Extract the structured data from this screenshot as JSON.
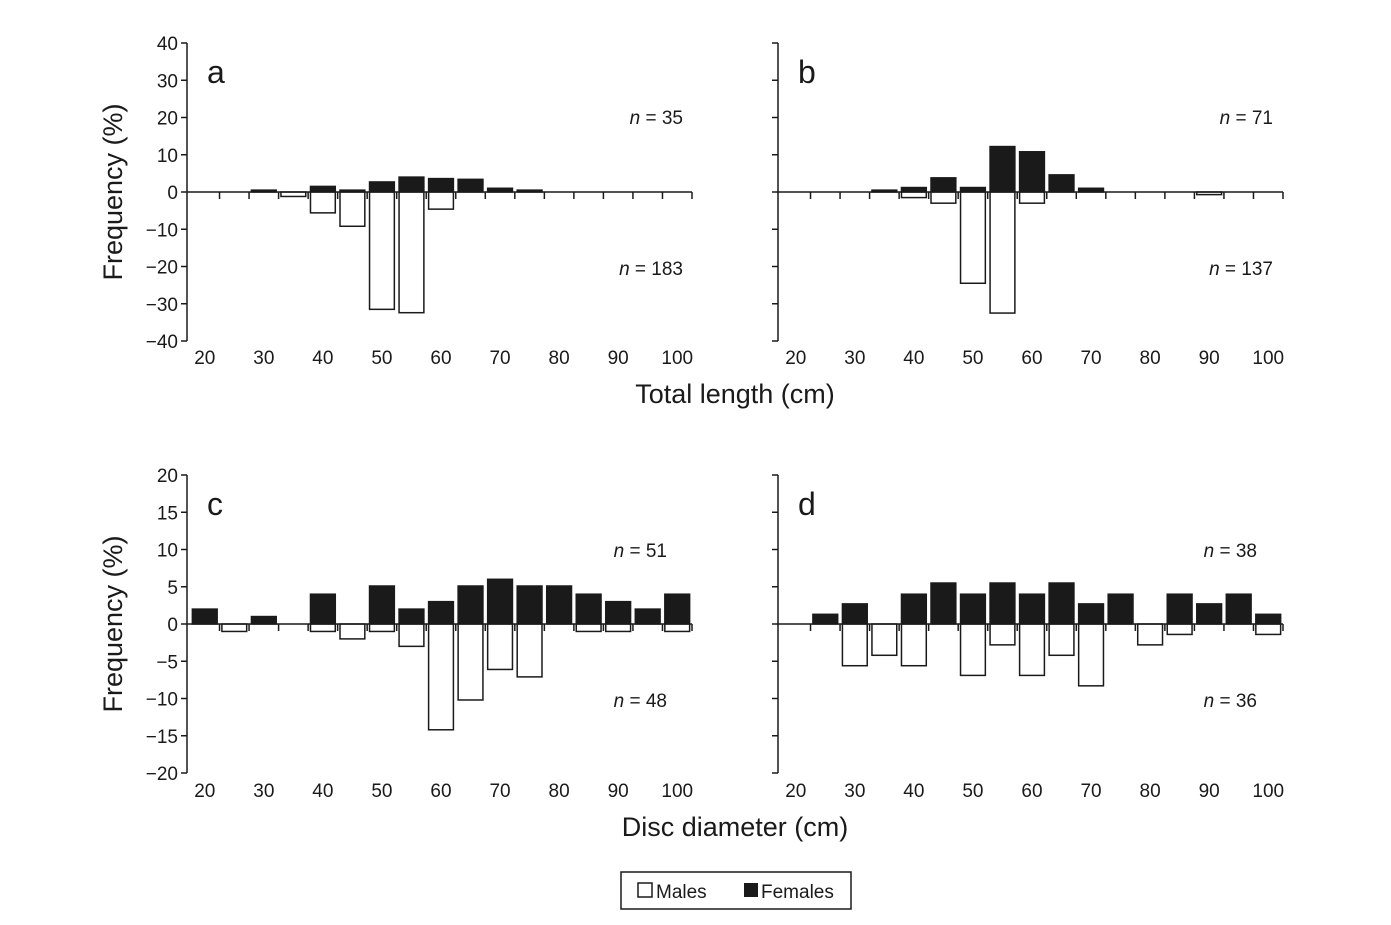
{
  "chart_data": [
    {
      "type": "bar",
      "panel": "a",
      "bin_centers": [
        20,
        25,
        30,
        35,
        40,
        45,
        50,
        55,
        60,
        65,
        70,
        75,
        80,
        85,
        90,
        95,
        100
      ],
      "xticks": [
        20,
        30,
        40,
        50,
        60,
        70,
        80,
        90,
        100
      ],
      "ylim": [
        -40,
        40
      ],
      "yticks": [
        -40,
        -30,
        -20,
        -10,
        0,
        10,
        20,
        30,
        40
      ],
      "yticklabels": [
        "−40",
        "−30",
        "−20",
        "−10",
        "0",
        "10",
        "20",
        "30",
        "40"
      ],
      "series": [
        {
          "name": "Females",
          "values": [
            0,
            0,
            0.5,
            0,
            1.5,
            0.5,
            2.7,
            4.0,
            3.6,
            3.4,
            1.0,
            0.5,
            0,
            0,
            0,
            0,
            0
          ]
        },
        {
          "name": "Males",
          "values": [
            0,
            0,
            0,
            -1.2,
            -5.6,
            -9.2,
            -31.5,
            -32.4,
            -4.6,
            0,
            0,
            0,
            0,
            0,
            0,
            0,
            0
          ]
        }
      ],
      "n_top": "= 35",
      "n_bottom": "= 183"
    },
    {
      "type": "bar",
      "panel": "b",
      "bin_centers": [
        20,
        25,
        30,
        35,
        40,
        45,
        50,
        55,
        60,
        65,
        70,
        75,
        80,
        85,
        90,
        95,
        100
      ],
      "xticks": [
        20,
        30,
        40,
        50,
        60,
        70,
        80,
        90,
        100
      ],
      "ylim": [
        -40,
        40
      ],
      "yticks": [
        -40,
        -30,
        -20,
        -10,
        0,
        10,
        20,
        30,
        40
      ],
      "series": [
        {
          "name": "Females",
          "values": [
            0,
            0,
            0,
            0.5,
            1.2,
            3.8,
            1.2,
            12.2,
            10.8,
            4.6,
            1.0,
            0,
            0,
            0,
            0,
            0,
            0
          ]
        },
        {
          "name": "Males",
          "values": [
            0,
            0,
            0,
            0,
            -1.5,
            -3.0,
            -24.5,
            -32.5,
            -3.0,
            0,
            0,
            0,
            0,
            0,
            -0.7,
            0,
            0
          ]
        }
      ],
      "n_top": "= 71",
      "n_bottom": "= 137"
    },
    {
      "type": "bar",
      "panel": "c",
      "bin_centers": [
        20,
        25,
        30,
        35,
        40,
        45,
        50,
        55,
        60,
        65,
        70,
        75,
        80,
        85,
        90,
        95,
        100
      ],
      "xticks": [
        20,
        30,
        40,
        50,
        60,
        70,
        80,
        90,
        100
      ],
      "ylim": [
        -20,
        20
      ],
      "yticks": [
        -20,
        -15,
        -10,
        -5,
        0,
        5,
        10,
        15,
        20
      ],
      "yticklabels": [
        "−20",
        "−15",
        "−10",
        "−5",
        "0",
        "5",
        "10",
        "15",
        "20"
      ],
      "series": [
        {
          "name": "Females",
          "values": [
            2,
            0,
            1,
            0,
            4,
            0,
            5.1,
            2,
            3,
            5.1,
            6,
            5.1,
            5.1,
            4,
            3,
            2,
            4
          ]
        },
        {
          "name": "Males",
          "values": [
            0,
            -1,
            0,
            0,
            -1,
            -2,
            -1,
            -3,
            -14.2,
            -10.2,
            -6.1,
            -7.1,
            0,
            -1,
            -1,
            0,
            -1
          ]
        }
      ],
      "n_top": "= 51",
      "n_bottom": "= 48"
    },
    {
      "type": "bar",
      "panel": "d",
      "bin_centers": [
        20,
        25,
        30,
        35,
        40,
        45,
        50,
        55,
        60,
        65,
        70,
        75,
        80,
        85,
        90,
        95,
        100
      ],
      "xticks": [
        20,
        30,
        40,
        50,
        60,
        70,
        80,
        90,
        100
      ],
      "ylim": [
        -20,
        20
      ],
      "yticks": [
        -20,
        -15,
        -10,
        -5,
        0,
        5,
        10,
        15,
        20
      ],
      "series": [
        {
          "name": "Females",
          "values": [
            0,
            1.3,
            2.7,
            0,
            4.0,
            5.5,
            4.0,
            5.5,
            4.0,
            5.5,
            2.7,
            4.0,
            0,
            4.0,
            2.7,
            4.0,
            1.3
          ]
        },
        {
          "name": "Males",
          "values": [
            0,
            0,
            -5.6,
            -4.2,
            -5.6,
            0,
            -6.9,
            -2.8,
            -6.9,
            -4.2,
            -8.3,
            0,
            -2.8,
            -1.4,
            0,
            0,
            -1.4
          ]
        }
      ],
      "n_top": "= 38",
      "n_bottom": "= 36"
    }
  ],
  "labels": {
    "n_symbol": "n",
    "y_axis_title": "Frequency (%)",
    "x_axis_title_top": "Total length (cm)",
    "x_axis_title_bottom": "Disc diameter (cm)",
    "legend": {
      "males": "Males",
      "females": "Females"
    }
  },
  "colors": {
    "females": "#1a1a1a",
    "males": "#ffffff",
    "outline": "#1a1a1a"
  }
}
